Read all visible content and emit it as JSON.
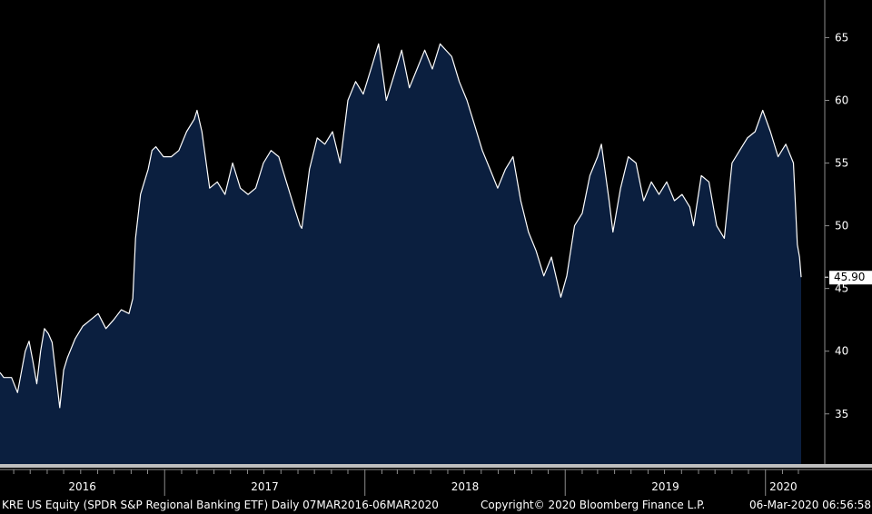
{
  "chart_data": {
    "type": "area",
    "title": "",
    "xlabel": "",
    "ylabel": "",
    "ylim": [
      31,
      68
    ],
    "y_ticks": [
      35,
      40,
      45,
      50,
      55,
      60,
      65
    ],
    "x_range": [
      "2016-03-07",
      "2020-03-06"
    ],
    "x_tick_labels": [
      "2016",
      "2017",
      "2018",
      "2019",
      "2020"
    ],
    "last_value_label": "45.90",
    "grid": false,
    "series": [
      {
        "points": [
          [
            "2016-03-07",
            38.3
          ],
          [
            "2016-03-14",
            37.9
          ],
          [
            "2016-03-28",
            37.9
          ],
          [
            "2016-04-08",
            36.7
          ],
          [
            "2016-04-22",
            40.0
          ],
          [
            "2016-04-29",
            40.8
          ],
          [
            "2016-05-06",
            39.2
          ],
          [
            "2016-05-13",
            37.4
          ],
          [
            "2016-05-20",
            40.0
          ],
          [
            "2016-05-27",
            41.8
          ],
          [
            "2016-06-03",
            41.4
          ],
          [
            "2016-06-10",
            40.7
          ],
          [
            "2016-06-24",
            35.5
          ],
          [
            "2016-07-01",
            38.5
          ],
          [
            "2016-07-08",
            39.5
          ],
          [
            "2016-07-22",
            41.0
          ],
          [
            "2016-08-05",
            42.0
          ],
          [
            "2016-08-19",
            42.5
          ],
          [
            "2016-09-02",
            43.0
          ],
          [
            "2016-09-16",
            41.8
          ],
          [
            "2016-09-30",
            42.5
          ],
          [
            "2016-10-14",
            43.3
          ],
          [
            "2016-10-28",
            43.0
          ],
          [
            "2016-11-04",
            44.2
          ],
          [
            "2016-11-09",
            49.0
          ],
          [
            "2016-11-18",
            52.5
          ],
          [
            "2016-12-02",
            54.5
          ],
          [
            "2016-12-09",
            56.0
          ],
          [
            "2016-12-16",
            56.3
          ],
          [
            "2016-12-30",
            55.5
          ],
          [
            "2017-01-13",
            55.5
          ],
          [
            "2017-01-27",
            56.0
          ],
          [
            "2017-02-10",
            57.5
          ],
          [
            "2017-02-24",
            58.5
          ],
          [
            "2017-03-01",
            59.2
          ],
          [
            "2017-03-10",
            57.5
          ],
          [
            "2017-03-24",
            53.0
          ],
          [
            "2017-04-07",
            53.5
          ],
          [
            "2017-04-21",
            52.5
          ],
          [
            "2017-05-05",
            55.0
          ],
          [
            "2017-05-19",
            53.0
          ],
          [
            "2017-06-02",
            52.5
          ],
          [
            "2017-06-16",
            53.0
          ],
          [
            "2017-06-30",
            55.0
          ],
          [
            "2017-07-14",
            56.0
          ],
          [
            "2017-07-28",
            55.5
          ],
          [
            "2017-08-11",
            53.5
          ],
          [
            "2017-08-25",
            51.5
          ],
          [
            "2017-09-05",
            50.0
          ],
          [
            "2017-09-08",
            49.8
          ],
          [
            "2017-09-22",
            54.5
          ],
          [
            "2017-10-06",
            57.0
          ],
          [
            "2017-10-20",
            56.5
          ],
          [
            "2017-11-03",
            57.5
          ],
          [
            "2017-11-17",
            55.0
          ],
          [
            "2017-12-01",
            60.0
          ],
          [
            "2017-12-15",
            61.5
          ],
          [
            "2017-12-29",
            60.5
          ],
          [
            "2018-01-12",
            62.5
          ],
          [
            "2018-01-26",
            64.5
          ],
          [
            "2018-02-09",
            60.0
          ],
          [
            "2018-02-23",
            62.0
          ],
          [
            "2018-03-09",
            64.0
          ],
          [
            "2018-03-23",
            61.0
          ],
          [
            "2018-04-06",
            62.5
          ],
          [
            "2018-04-20",
            64.0
          ],
          [
            "2018-05-04",
            62.5
          ],
          [
            "2018-05-18",
            64.5
          ],
          [
            "2018-06-08",
            63.5
          ],
          [
            "2018-06-22",
            61.5
          ],
          [
            "2018-07-06",
            60.0
          ],
          [
            "2018-07-20",
            58.0
          ],
          [
            "2018-08-03",
            56.0
          ],
          [
            "2018-08-17",
            54.5
          ],
          [
            "2018-08-31",
            53.0
          ],
          [
            "2018-09-14",
            54.5
          ],
          [
            "2018-09-28",
            55.5
          ],
          [
            "2018-10-12",
            52.0
          ],
          [
            "2018-10-26",
            49.5
          ],
          [
            "2018-11-09",
            48.0
          ],
          [
            "2018-11-23",
            46.0
          ],
          [
            "2018-12-07",
            47.5
          ],
          [
            "2018-12-24",
            44.3
          ],
          [
            "2019-01-04",
            46.0
          ],
          [
            "2019-01-18",
            50.0
          ],
          [
            "2019-02-01",
            51.0
          ],
          [
            "2019-02-15",
            54.0
          ],
          [
            "2019-03-01",
            55.5
          ],
          [
            "2019-03-08",
            56.5
          ],
          [
            "2019-03-22",
            52.0
          ],
          [
            "2019-03-29",
            49.5
          ],
          [
            "2019-04-12",
            53.0
          ],
          [
            "2019-04-26",
            55.5
          ],
          [
            "2019-05-10",
            55.0
          ],
          [
            "2019-05-24",
            52.0
          ],
          [
            "2019-06-07",
            53.5
          ],
          [
            "2019-06-21",
            52.5
          ],
          [
            "2019-07-05",
            53.5
          ],
          [
            "2019-07-19",
            52.0
          ],
          [
            "2019-08-02",
            52.5
          ],
          [
            "2019-08-16",
            51.5
          ],
          [
            "2019-08-23",
            50.0
          ],
          [
            "2019-09-06",
            54.0
          ],
          [
            "2019-09-20",
            53.5
          ],
          [
            "2019-10-04",
            50.0
          ],
          [
            "2019-10-18",
            49.0
          ],
          [
            "2019-11-01",
            55.0
          ],
          [
            "2019-11-15",
            56.0
          ],
          [
            "2019-11-29",
            57.0
          ],
          [
            "2019-12-13",
            57.5
          ],
          [
            "2019-12-27",
            59.2
          ],
          [
            "2020-01-10",
            57.5
          ],
          [
            "2020-01-24",
            55.5
          ],
          [
            "2020-02-07",
            56.5
          ],
          [
            "2020-02-21",
            55.0
          ],
          [
            "2020-02-28",
            48.5
          ],
          [
            "2020-03-03",
            47.5
          ],
          [
            "2020-03-06",
            45.9
          ]
        ]
      }
    ],
    "colors": {
      "background": "#000000",
      "area_fill": "#0b1f3f",
      "line": "#ffffff",
      "axis": "#8c8c8c",
      "text": "#ffffff"
    }
  },
  "footer": {
    "description": "KRE US Equity (SPDR S&P Regional Banking ETF)  Daily 07MAR2016-06MAR2020",
    "copyright": "Copyright© 2020 Bloomberg Finance L.P.",
    "timestamp": "06-Mar-2020 06:56:58"
  }
}
